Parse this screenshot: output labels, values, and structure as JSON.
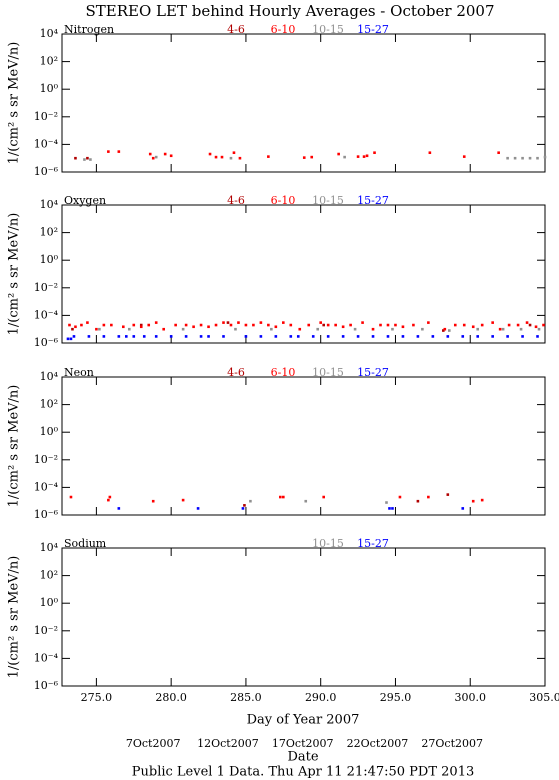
{
  "title": "STEREO LET behind Hourly Averages - October 2007",
  "xlabel": "Day of Year 2007",
  "date_label": "Date",
  "date_ticks": [
    {
      "value": 280,
      "label": "7Oct2007"
    },
    {
      "value": 285,
      "label": "12Oct2007"
    },
    {
      "value": 290,
      "label": "17Oct2007"
    },
    {
      "value": 295,
      "label": "22Oct2007"
    },
    {
      "value": 300,
      "label": "27Oct2007"
    }
  ],
  "footer": "Public Level 1 Data. Thu Apr 11 21:47:50 PDT 2013",
  "chart_data": [
    {
      "type": "scatter",
      "title": "Nitrogen",
      "ylabel": "1/(cm² s sr MeV/n)",
      "log_y": true,
      "xlim": [
        272.7,
        305
      ],
      "ylim": [
        1e-06,
        10000
      ],
      "yticks": [
        {
          "value": 10000,
          "label": "10⁴"
        },
        {
          "value": 100,
          "label": "10²"
        },
        {
          "value": 1,
          "label": "10⁰"
        },
        {
          "value": 0.01,
          "label": "10⁻²"
        },
        {
          "value": 0.0001,
          "label": "10⁻⁴"
        },
        {
          "value": 1e-06,
          "label": "10⁻⁶"
        }
      ],
      "series": [
        {
          "name": "4-6",
          "color": "#b00000",
          "x": [
            273.6,
            274.4
          ],
          "values": [
            1e-05,
            1e-05
          ]
        },
        {
          "name": "6-10",
          "color": "#ff0000",
          "x": [
            275.8,
            276.5,
            278.6,
            278.8,
            279.6,
            280.0,
            282.6,
            283.0,
            283.4,
            284.2,
            284.6,
            286.5,
            288.9,
            289.4,
            291.2,
            292.5,
            292.9,
            293.1,
            293.6,
            297.3,
            299.6,
            301.9
          ],
          "values": [
            3e-05,
            3e-05,
            2e-05,
            1e-05,
            2e-05,
            1.5e-05,
            2e-05,
            1.2e-05,
            1.2e-05,
            2.5e-05,
            1e-05,
            1.3e-05,
            1.1e-05,
            1.2e-05,
            2e-05,
            1.3e-05,
            1.3e-05,
            1.5e-05,
            2.5e-05,
            2.5e-05,
            1.3e-05,
            2.5e-05
          ]
        },
        {
          "name": "10-15",
          "color": "#909090",
          "x": [
            274.2,
            274.6,
            279.0,
            284.0,
            291.6,
            302.5,
            303.0,
            303.5,
            304.0,
            304.5,
            305.0
          ],
          "values": [
            8e-06,
            8e-06,
            1.2e-05,
            1e-05,
            1.2e-05,
            1e-05,
            1e-05,
            1e-05,
            1e-05,
            1e-05,
            1.2e-05
          ]
        },
        {
          "name": "15-27",
          "color": "#0000ff",
          "x": [],
          "values": []
        }
      ]
    },
    {
      "type": "scatter",
      "title": "Oxygen",
      "ylabel": "1/(cm² s sr MeV/n)",
      "log_y": true,
      "xlim": [
        272.7,
        305
      ],
      "ylim": [
        1e-06,
        10000
      ],
      "yticks": [
        {
          "value": 10000,
          "label": "10⁴"
        },
        {
          "value": 100,
          "label": "10²"
        },
        {
          "value": 1,
          "label": "10⁰"
        },
        {
          "value": 0.01,
          "label": "10⁻²"
        },
        {
          "value": 0.0001,
          "label": "10⁻⁴"
        },
        {
          "value": 1e-06,
          "label": "10⁻⁶"
        }
      ],
      "series": [
        {
          "name": "4-6",
          "color": "#b00000",
          "x": [
            273.4,
            278.0,
            283.8,
            290.2,
            298.2,
            304.0
          ],
          "values": [
            1e-05,
            2e-05,
            3e-05,
            2e-05,
            8e-06,
            2e-05
          ]
        },
        {
          "name": "6-10",
          "color": "#ff0000",
          "x": [
            273.2,
            273.6,
            274.0,
            274.4,
            275.0,
            275.5,
            276.0,
            276.8,
            277.5,
            278.0,
            278.5,
            279.0,
            279.5,
            280.3,
            281.0,
            281.5,
            282.0,
            282.5,
            283.0,
            283.5,
            284.0,
            284.5,
            285.0,
            285.5,
            286.0,
            286.5,
            287.0,
            287.5,
            288.0,
            288.6,
            289.2,
            290.0,
            290.5,
            291.0,
            291.5,
            292.0,
            292.8,
            293.5,
            294.0,
            294.5,
            295.0,
            295.5,
            296.2,
            297.2,
            298.3,
            299.0,
            299.6,
            300.2,
            300.8,
            301.5,
            302.0,
            302.6,
            303.2,
            303.8,
            304.4,
            304.9
          ],
          "values": [
            2e-05,
            1.5e-05,
            2e-05,
            3e-05,
            1e-05,
            2e-05,
            2e-05,
            1.5e-05,
            2e-05,
            1.5e-05,
            2e-05,
            3e-05,
            1e-05,
            2e-05,
            2e-05,
            1.5e-05,
            2e-05,
            1.5e-05,
            2e-05,
            3e-05,
            2e-05,
            3e-05,
            2e-05,
            2e-05,
            3e-05,
            2e-05,
            1.5e-05,
            3e-05,
            2e-05,
            1e-05,
            2e-05,
            3e-05,
            2e-05,
            2e-05,
            1.5e-05,
            2e-05,
            3e-05,
            1e-05,
            2e-05,
            2e-05,
            2e-05,
            1.5e-05,
            2e-05,
            3e-05,
            1e-05,
            2e-05,
            2e-05,
            1.5e-05,
            2e-05,
            3e-05,
            1e-05,
            2e-05,
            2e-05,
            3e-05,
            1.5e-05,
            2e-05
          ]
        },
        {
          "name": "10-15",
          "color": "#909090",
          "x": [
            275.2,
            277.2,
            280.8,
            284.3,
            286.7,
            289.8,
            292.3,
            294.8,
            296.8,
            298.6,
            300.5,
            302.2,
            303.4,
            304.6
          ],
          "values": [
            1e-05,
            1e-05,
            1e-05,
            1e-05,
            1e-05,
            1e-05,
            1e-05,
            1e-05,
            1e-05,
            8e-06,
            1e-05,
            1e-05,
            1e-05,
            1e-05
          ]
        },
        {
          "name": "15-27",
          "color": "#0000ff",
          "x": [
            273.1,
            273.3,
            273.5,
            274.5,
            275.5,
            276.5,
            277.0,
            277.5,
            278.2,
            279.0,
            280.0,
            281.0,
            282.0,
            282.5,
            283.5,
            285.0,
            286.0,
            287.0,
            288.0,
            288.5,
            289.5,
            290.5,
            291.5,
            292.5,
            293.5,
            294.5,
            295.5,
            296.5,
            297.5,
            298.5,
            299.5,
            300.5,
            301.5,
            302.5,
            303.5,
            304.5
          ],
          "values": [
            2e-06,
            2e-06,
            3e-06,
            3e-06,
            3e-06,
            3e-06,
            3e-06,
            3e-06,
            3e-06,
            3e-06,
            3e-06,
            3e-06,
            3e-06,
            3e-06,
            3e-06,
            3e-06,
            3e-06,
            3e-06,
            3e-06,
            3e-06,
            3e-06,
            3e-06,
            3e-06,
            3e-06,
            3e-06,
            3e-06,
            3e-06,
            3e-06,
            3e-06,
            3e-06,
            3e-06,
            3e-06,
            3e-06,
            3e-06,
            3e-06,
            3e-06
          ]
        }
      ]
    },
    {
      "type": "scatter",
      "title": "Neon",
      "ylabel": "1/(cm² s sr MeV/n)",
      "log_y": true,
      "xlim": [
        272.7,
        305
      ],
      "ylim": [
        1e-06,
        10000
      ],
      "yticks": [
        {
          "value": 10000,
          "label": "10⁴"
        },
        {
          "value": 100,
          "label": "10²"
        },
        {
          "value": 1,
          "label": "10⁰"
        },
        {
          "value": 0.01,
          "label": "10⁻²"
        },
        {
          "value": 0.0001,
          "label": "10⁻⁴"
        },
        {
          "value": 1e-06,
          "label": "10⁻⁶"
        }
      ],
      "series": [
        {
          "name": "4-6",
          "color": "#b00000",
          "x": [
            284.9,
            296.5,
            298.5
          ],
          "values": [
            5e-06,
            1e-05,
            3e-05
          ]
        },
        {
          "name": "6-10",
          "color": "#ff0000",
          "x": [
            273.3,
            275.8,
            275.9,
            278.8,
            280.8,
            287.3,
            287.5,
            290.2,
            295.3,
            297.2,
            300.2,
            300.8
          ],
          "values": [
            2e-05,
            1.2e-05,
            2e-05,
            1e-05,
            1.2e-05,
            2e-05,
            2e-05,
            2e-05,
            2e-05,
            2e-05,
            1e-05,
            1.2e-05
          ]
        },
        {
          "name": "10-15",
          "color": "#909090",
          "x": [
            285.3,
            289.0,
            294.4
          ],
          "values": [
            1e-05,
            1e-05,
            8e-06
          ]
        },
        {
          "name": "15-27",
          "color": "#0000ff",
          "x": [
            276.5,
            281.8,
            284.8,
            294.6,
            294.8,
            299.5
          ],
          "values": [
            3e-06,
            3e-06,
            3e-06,
            3e-06,
            3e-06,
            3e-06
          ]
        }
      ]
    },
    {
      "type": "scatter",
      "title": "Sodium",
      "ylabel": "1/(cm² s sr MeV/n)",
      "log_y": true,
      "xlim": [
        272.7,
        305
      ],
      "ylim": [
        1e-06,
        10000
      ],
      "yticks": [
        {
          "value": 10000,
          "label": "10⁴"
        },
        {
          "value": 100,
          "label": "10²"
        },
        {
          "value": 1,
          "label": "10⁰"
        },
        {
          "value": 0.01,
          "label": "10⁻²"
        },
        {
          "value": 0.0001,
          "label": "10⁻⁴"
        },
        {
          "value": 1e-06,
          "label": "10⁻⁶"
        }
      ],
      "xticks": [
        {
          "value": 275,
          "label": "275.0"
        },
        {
          "value": 280,
          "label": "280.0"
        },
        {
          "value": 285,
          "label": "285.0"
        },
        {
          "value": 290,
          "label": "290.0"
        },
        {
          "value": 295,
          "label": "295.0"
        },
        {
          "value": 300,
          "label": "300.0"
        },
        {
          "value": 305,
          "label": "305.0"
        }
      ],
      "series": [
        {
          "name": "10-15",
          "color": "#909090",
          "x": [],
          "values": []
        },
        {
          "name": "15-27",
          "color": "#0000ff",
          "x": [],
          "values": []
        }
      ]
    }
  ]
}
